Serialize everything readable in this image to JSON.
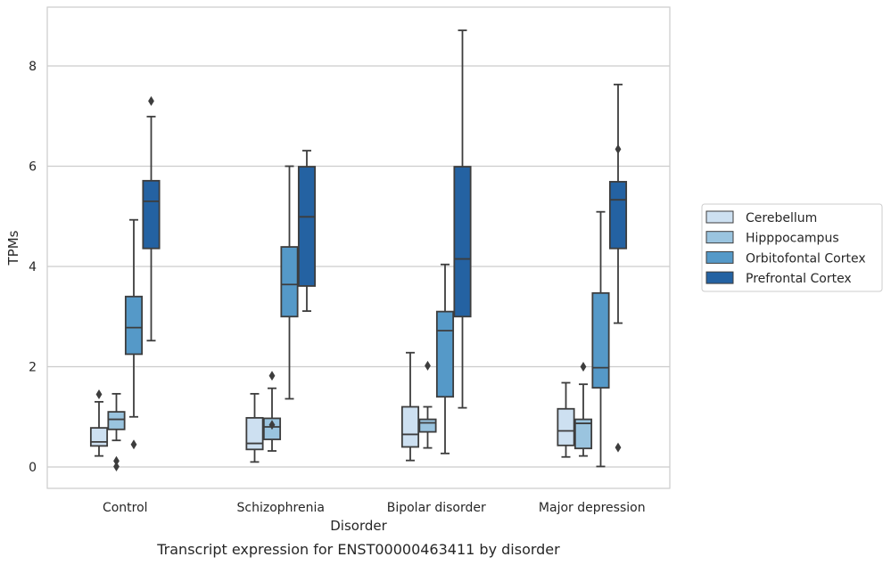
{
  "chart_data": {
    "type": "box",
    "title": "Transcript expression for ENST00000463411 by disorder",
    "xlabel": "Disorder",
    "ylabel": "TPMs",
    "ylim": [
      -0.4,
      9.3
    ],
    "yticks": [
      0,
      2,
      4,
      6,
      8
    ],
    "grid": true,
    "legend_position": "right",
    "categories": [
      "Control",
      "Schizophrenia",
      "Bipolar disorder",
      "Major depression"
    ],
    "series": [
      {
        "name": "Cerebellum",
        "color": "#cde0f1",
        "boxes": [
          {
            "whisker_low": 0.22,
            "q1": 0.42,
            "median": 0.5,
            "q3": 0.78,
            "whisker_high": 1.3,
            "outliers": [
              1.45
            ]
          },
          {
            "whisker_low": 0.1,
            "q1": 0.35,
            "median": 0.47,
            "q3": 0.98,
            "whisker_high": 1.46,
            "outliers": []
          },
          {
            "whisker_low": 0.13,
            "q1": 0.4,
            "median": 0.65,
            "q3": 1.2,
            "whisker_high": 2.28,
            "outliers": []
          },
          {
            "whisker_low": 0.2,
            "q1": 0.43,
            "median": 0.72,
            "q3": 1.16,
            "whisker_high": 1.68,
            "outliers": []
          }
        ]
      },
      {
        "name": "Hipppocampus",
        "color": "#9ac4df",
        "boxes": [
          {
            "whisker_low": 0.53,
            "q1": 0.75,
            "median": 0.95,
            "q3": 1.1,
            "whisker_high": 1.46,
            "outliers": [
              0.12,
              0.01
            ]
          },
          {
            "whisker_low": 0.32,
            "q1": 0.55,
            "median": 0.8,
            "q3": 0.97,
            "whisker_high": 1.57,
            "outliers": [
              1.82,
              0.84
            ]
          },
          {
            "whisker_low": 0.38,
            "q1": 0.7,
            "median": 0.88,
            "q3": 0.95,
            "whisker_high": 1.2,
            "outliers": [
              2.02
            ]
          },
          {
            "whisker_low": 0.22,
            "q1": 0.37,
            "median": 0.87,
            "q3": 0.95,
            "whisker_high": 1.65,
            "outliers": [
              2.0
            ]
          }
        ]
      },
      {
        "name": "Orbitofontal Cortex",
        "color": "#5599c8",
        "boxes": [
          {
            "whisker_low": 1.0,
            "q1": 2.25,
            "median": 2.78,
            "q3": 3.4,
            "whisker_high": 4.93,
            "outliers": [
              0.45
            ]
          },
          {
            "whisker_low": 1.36,
            "q1": 3.0,
            "median": 3.64,
            "q3": 4.39,
            "whisker_high": 6.0,
            "outliers": []
          },
          {
            "whisker_low": 0.27,
            "q1": 1.4,
            "median": 2.72,
            "q3": 3.1,
            "whisker_high": 4.04,
            "outliers": []
          },
          {
            "whisker_low": 0.01,
            "q1": 1.58,
            "median": 1.98,
            "q3": 3.47,
            "whisker_high": 5.09,
            "outliers": []
          }
        ]
      },
      {
        "name": "Prefrontal Cortex",
        "color": "#2462a2",
        "boxes": [
          {
            "whisker_low": 2.52,
            "q1": 4.36,
            "median": 5.3,
            "q3": 5.71,
            "whisker_high": 6.99,
            "outliers": [
              7.3
            ]
          },
          {
            "whisker_low": 3.11,
            "q1": 3.61,
            "median": 4.99,
            "q3": 5.99,
            "whisker_high": 6.31,
            "outliers": []
          },
          {
            "whisker_low": 1.18,
            "q1": 3.0,
            "median": 4.15,
            "q3": 5.99,
            "whisker_high": 8.71,
            "outliers": []
          },
          {
            "whisker_low": 2.87,
            "q1": 4.36,
            "median": 5.33,
            "q3": 5.69,
            "whisker_high": 7.63,
            "outliers": [
              0.39,
              6.34
            ]
          }
        ]
      }
    ]
  }
}
